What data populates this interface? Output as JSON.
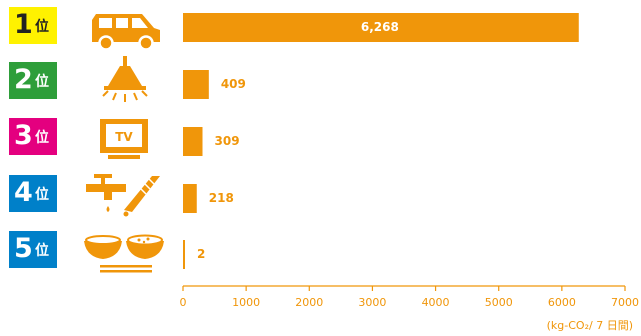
{
  "chart_data": {
    "type": "bar",
    "orientation": "horizontal",
    "categories": [
      "1位",
      "2位",
      "3位",
      "4位",
      "5位"
    ],
    "rank_numbers": [
      "1",
      "2",
      "3",
      "4",
      "5"
    ],
    "rank_suffix": "位",
    "rank_colors": [
      "#fff200",
      "#2e9e3a",
      "#e4007f",
      "#0080c9",
      "#0080c9"
    ],
    "icons": [
      "car-icon",
      "ceiling-light-icon",
      "tv-icon",
      "faucet-toothbrush-icon",
      "rice-bowls-chopsticks-icon"
    ],
    "values": [
      6268,
      409,
      309,
      218,
      2
    ],
    "value_labels": [
      "6,268",
      "409",
      "309",
      "218",
      "2"
    ],
    "xlim": [
      0,
      7000
    ],
    "xticks": [
      "0",
      "1000",
      "2000",
      "3000",
      "4000",
      "5000",
      "6000",
      "7000"
    ],
    "unit": "(kg-CO₂/ 7 日間)",
    "bar_color": "#f0960a",
    "grid": false
  }
}
